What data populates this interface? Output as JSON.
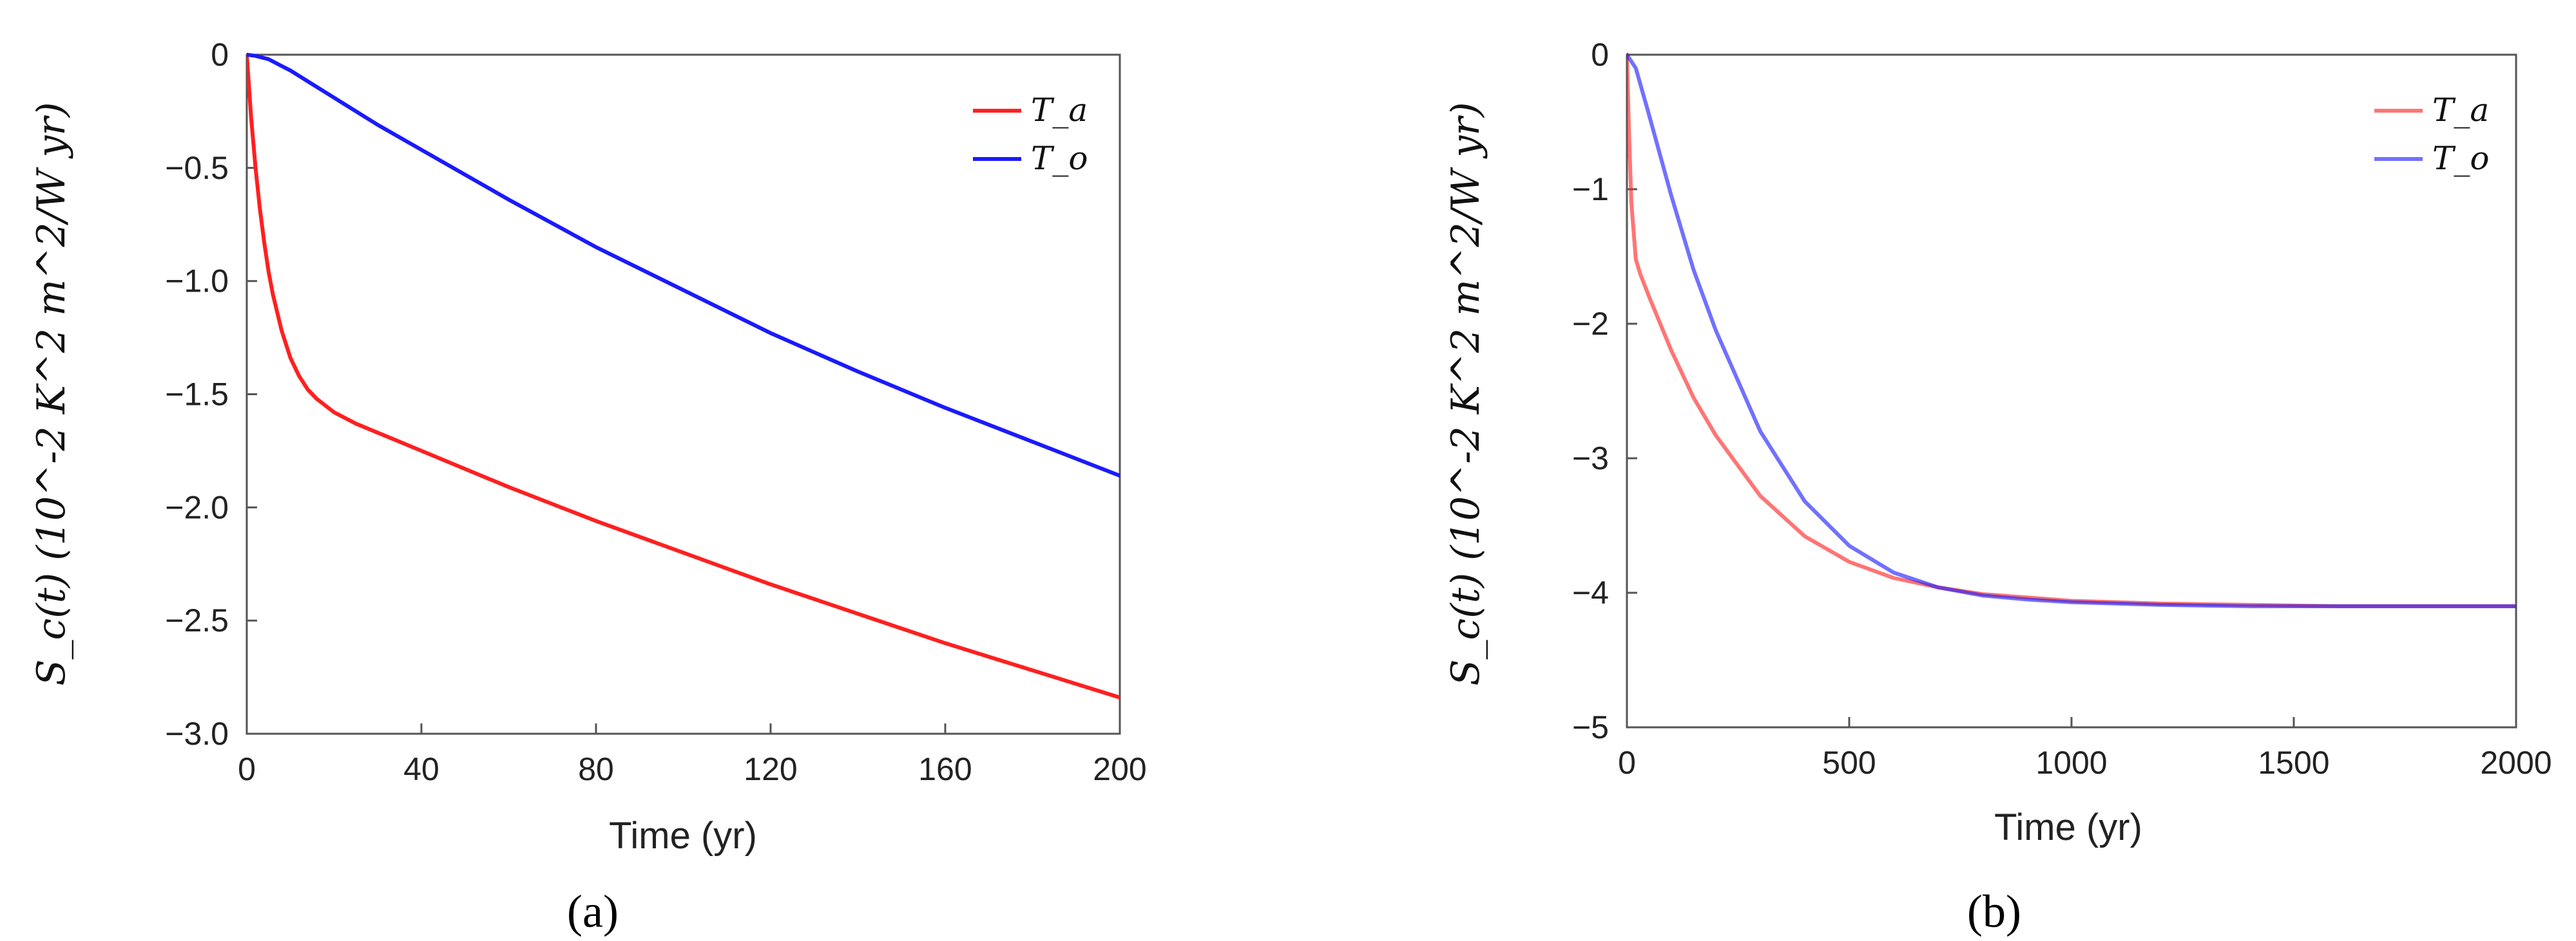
{
  "chart_data": [
    {
      "type": "line",
      "panel_label": "(a)",
      "xlabel": "Time (yr)",
      "ylabel": "S_c(t) (10^-2 K^2 m^2/W yr)",
      "xlim": [
        0,
        200
      ],
      "ylim": [
        -3.0,
        0
      ],
      "xticks": [
        "0",
        "40",
        "80",
        "120",
        "160",
        "200"
      ],
      "yticks": [
        "0",
        "-0.5",
        "-1.0",
        "-1.5",
        "-2.0",
        "-2.5",
        "-3.0"
      ],
      "xtick_values": [
        0,
        40,
        80,
        120,
        160,
        200
      ],
      "ytick_values": [
        0,
        -0.5,
        -1.0,
        -1.5,
        -2.0,
        -2.5,
        -3.0
      ],
      "legend_position": "top-right",
      "series": [
        {
          "name": "T_a",
          "color": "#ff2020",
          "opacity": 1,
          "x": [
            0,
            1,
            2,
            3,
            4,
            5,
            6,
            8,
            10,
            12,
            14,
            16,
            20,
            25,
            30,
            40,
            60,
            80,
            100,
            120,
            140,
            160,
            180,
            200
          ],
          "y": [
            0,
            -0.28,
            -0.5,
            -0.68,
            -0.83,
            -0.96,
            -1.06,
            -1.22,
            -1.34,
            -1.42,
            -1.48,
            -1.52,
            -1.58,
            -1.63,
            -1.67,
            -1.75,
            -1.91,
            -2.06,
            -2.2,
            -2.34,
            -2.47,
            -2.6,
            -2.72,
            -2.84
          ]
        },
        {
          "name": "T_o",
          "color": "#1a1aff",
          "opacity": 1,
          "x": [
            0,
            2,
            5,
            8,
            10,
            15,
            20,
            30,
            40,
            60,
            80,
            100,
            120,
            140,
            160,
            180,
            200
          ],
          "y": [
            0,
            -0.005,
            -0.02,
            -0.05,
            -0.07,
            -0.13,
            -0.19,
            -0.31,
            -0.42,
            -0.64,
            -0.85,
            -1.04,
            -1.23,
            -1.4,
            -1.56,
            -1.71,
            -1.86
          ]
        }
      ]
    },
    {
      "type": "line",
      "panel_label": "(b)",
      "xlabel": "Time (yr)",
      "ylabel": "S_c(t) (10^-2 K^2 m^2/W yr)",
      "xlim": [
        0,
        2000
      ],
      "ylim": [
        -5,
        0
      ],
      "xticks": [
        "0",
        "500",
        "1000",
        "1500",
        "2000"
      ],
      "yticks": [
        "0",
        "-1",
        "-2",
        "-3",
        "-4",
        "-5"
      ],
      "xtick_values": [
        0,
        500,
        1000,
        1500,
        2000
      ],
      "ytick_values": [
        0,
        -1,
        -2,
        -3,
        -4,
        -5
      ],
      "legend_position": "top-right",
      "series": [
        {
          "name": "T_a",
          "color": "#ff2020",
          "opacity": 0.62,
          "x": [
            0,
            5,
            10,
            20,
            30,
            50,
            100,
            150,
            200,
            300,
            400,
            500,
            600,
            700,
            800,
            1000,
            1200,
            1400,
            1600,
            1800,
            2000
          ],
          "y": [
            0,
            -0.6,
            -1.1,
            -1.52,
            -1.63,
            -1.8,
            -2.2,
            -2.55,
            -2.83,
            -3.28,
            -3.58,
            -3.77,
            -3.89,
            -3.96,
            -4.01,
            -4.06,
            -4.08,
            -4.09,
            -4.1,
            -4.1,
            -4.1
          ]
        },
        {
          "name": "T_o",
          "color": "#1a1aff",
          "opacity": 0.62,
          "x": [
            0,
            20,
            50,
            100,
            150,
            200,
            300,
            400,
            500,
            600,
            700,
            800,
            900,
            1000,
            1200,
            1400,
            1600,
            1800,
            2000
          ],
          "y": [
            0,
            -0.1,
            -0.45,
            -1.05,
            -1.6,
            -2.05,
            -2.8,
            -3.32,
            -3.65,
            -3.85,
            -3.96,
            -4.02,
            -4.05,
            -4.07,
            -4.09,
            -4.1,
            -4.1,
            -4.1,
            -4.1
          ]
        }
      ]
    }
  ]
}
